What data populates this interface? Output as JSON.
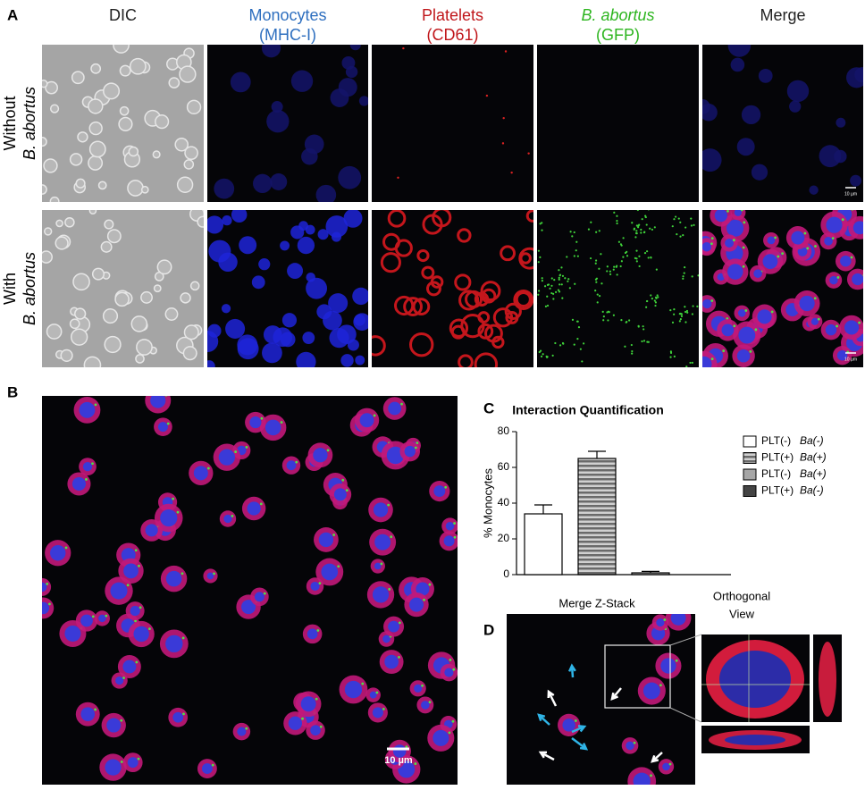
{
  "panel_labels": [
    "A",
    "B",
    "C",
    "D"
  ],
  "panel_a": {
    "columns": [
      {
        "title": "DIC",
        "color": "#222222"
      },
      {
        "title": "Monocytes",
        "subtitle": "(MHC-I)",
        "color": "#2e6fbf"
      },
      {
        "title": "Platelets",
        "subtitle": "(CD61)",
        "color": "#c0171b"
      },
      {
        "title": "B. abortus",
        "subtitle": "(GFP)",
        "color": "#2db51f"
      },
      {
        "title": "Merge",
        "color": "#222222"
      }
    ],
    "rows": [
      {
        "label": "Without",
        "sublabel": "B. abortus"
      },
      {
        "label": "With",
        "sublabel": "B. abortus"
      }
    ],
    "scale_bar": "10 µm"
  },
  "panel_b": {
    "scale_bar": "10 µm"
  },
  "chart_data": {
    "type": "bar",
    "title": "Interaction Quantification",
    "y_label": "% Monocytes",
    "categories": [
      null,
      null,
      null,
      null
    ],
    "values": [
      34,
      65,
      1,
      0
    ],
    "errors": [
      5,
      4,
      0.8,
      0
    ],
    "colors": [
      "#ffffff",
      "#8c8c8c",
      "#a6a6a6",
      "#444444"
    ],
    "patterns": [
      "solid",
      "stripes",
      "solid",
      "solid"
    ],
    "legend": [
      {
        "name": "PLT(-)",
        "italic": "Ba(-)"
      },
      {
        "name": "PLT(+)",
        "italic": "Ba(+)"
      },
      {
        "name": "PLT(-)",
        "italic": "Ba(+)"
      },
      {
        "name": "PLT(+)",
        "italic": "Ba(-)"
      }
    ],
    "ylim": [
      0,
      80
    ],
    "yticks": [
      0,
      20,
      40,
      60,
      80
    ]
  },
  "panel_d": {
    "title": "Merge Z-Stack",
    "orthogonal_title": [
      "Orthogonal",
      "View"
    ]
  }
}
